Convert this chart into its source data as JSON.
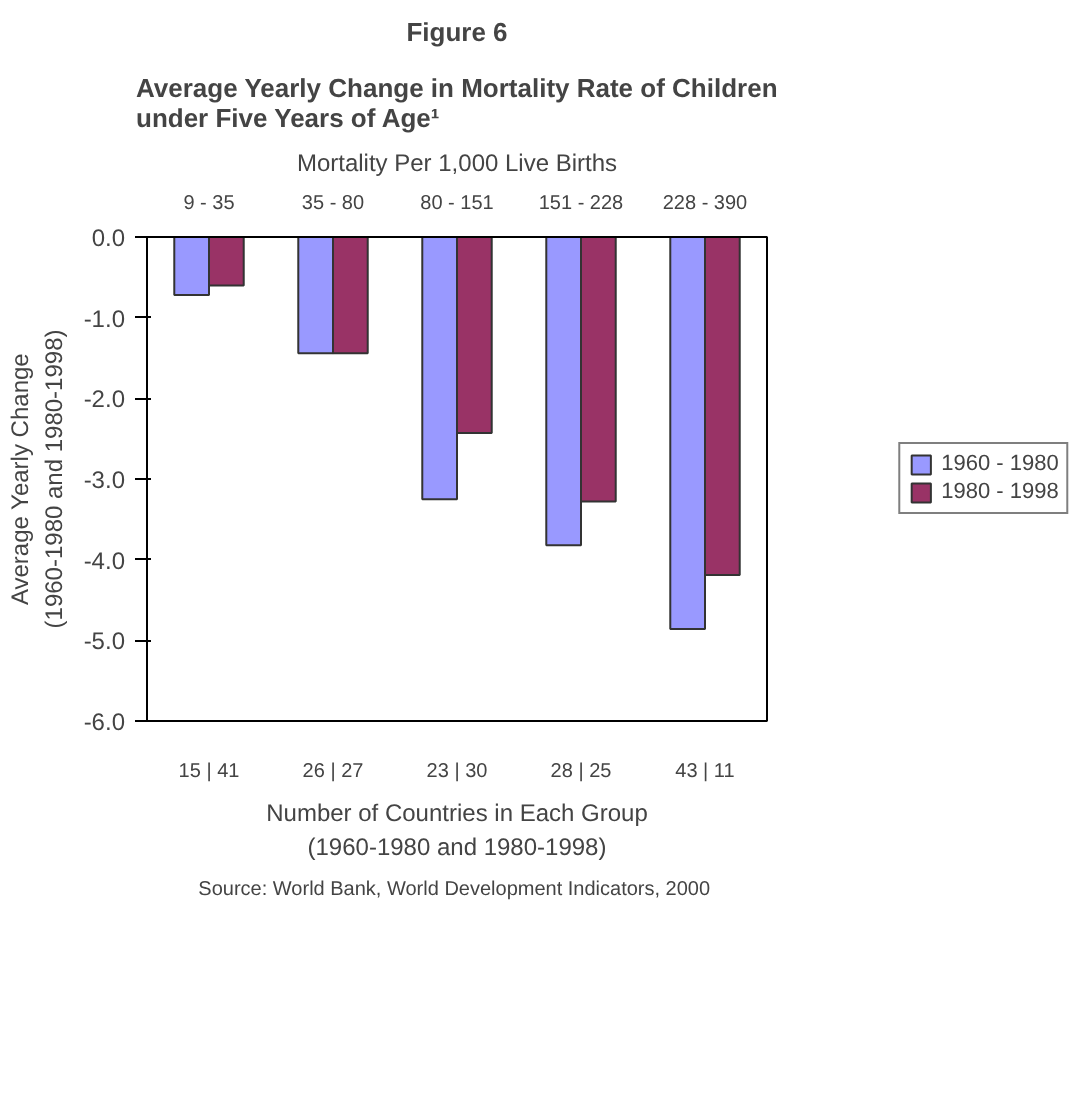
{
  "chart_data": {
    "type": "bar",
    "title": "Figure 6",
    "subtitle": "Average Yearly Change in Mortality Rate of Children under Five Years of Age¹",
    "x2label": "Mortality Per 1,000 Live Births",
    "xlabel": "Number of Countries in Each Group\n(1960-1980 and 1980-1998)",
    "ylabel": "Average Yearly Change\n(1960-1980 and 1980-1998)",
    "categories": [
      "9 - 35",
      "35 - 80",
      "80 - 151",
      "151 - 228",
      "228 - 390"
    ],
    "series": [
      {
        "name": "1960 - 1980",
        "color": "#9999ff",
        "values": [
          -0.72,
          -1.44,
          -3.25,
          -3.82,
          -4.86
        ]
      },
      {
        "name": "1980 - 1998",
        "color": "#993366",
        "values": [
          -0.6,
          -1.44,
          -2.43,
          -3.28,
          -4.19
        ]
      }
    ],
    "ylim": [
      -6,
      0
    ],
    "yticks": [
      {
        "value": -6,
        "label": "-6.0"
      },
      {
        "value": -5,
        "label": "-5.0"
      },
      {
        "value": -4,
        "label": "-4.0"
      },
      {
        "value": -3,
        "label": "-3.0"
      },
      {
        "value": -2,
        "label": "-2.0"
      },
      {
        "value": -1,
        "label": "-1.0"
      },
      {
        "value": 0,
        "label": "0.0"
      }
    ],
    "grid": false,
    "legend": "right",
    "annotations": [
      "15 | 41",
      "26 | 27",
      "23 | 30",
      "28 | 25",
      "43 | 11",
      "Source:  World Bank, World Development Indicators, 2000"
    ]
  }
}
